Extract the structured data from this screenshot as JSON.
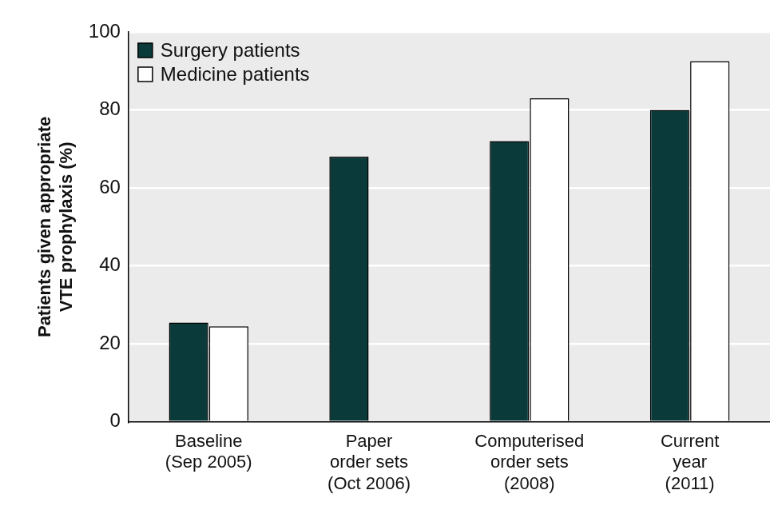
{
  "chart_data": {
    "type": "bar",
    "y_label": [
      "Patients given appropriate",
      "VTE prophylaxis (%)"
    ],
    "categories": [
      [
        "Baseline",
        "(Sep 2005)"
      ],
      [
        "Paper",
        "order sets",
        "(Oct 2006)"
      ],
      [
        "Computerised",
        "order sets",
        "(2008)"
      ],
      [
        "Current",
        "year",
        "(2011)"
      ]
    ],
    "series": [
      {
        "name": "Surgery patients",
        "color": "#0b3a3a",
        "values": [
          25.5,
          68,
          72,
          80
        ]
      },
      {
        "name": "Medicine patients",
        "color": "#ffffff",
        "values": [
          24.5,
          null,
          83,
          92.5
        ]
      }
    ],
    "ylim": [
      0,
      100
    ],
    "yticks": [
      0,
      20,
      40,
      60,
      80,
      100
    ],
    "grid": true,
    "legend": "upper left"
  }
}
